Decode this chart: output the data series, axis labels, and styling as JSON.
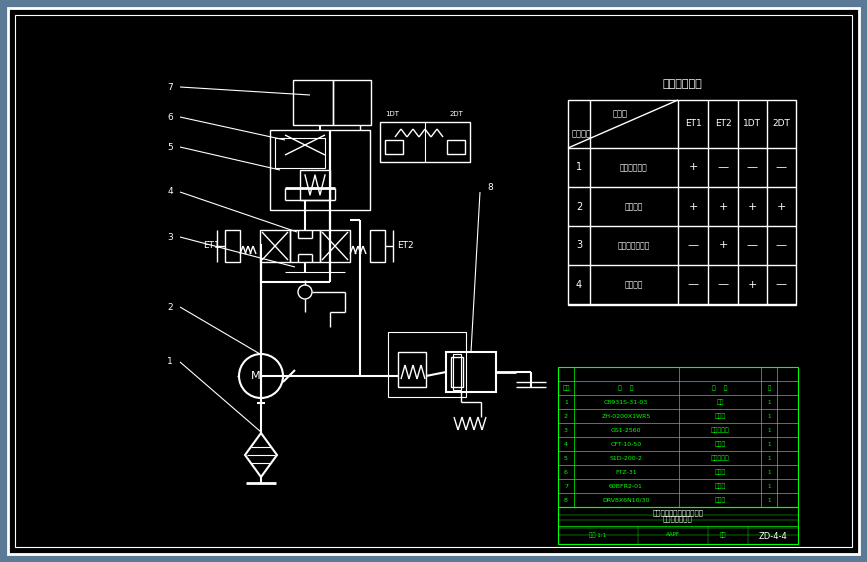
{
  "bg_color": "#000000",
  "line_color": "#ffffff",
  "green_color": "#00ff00",
  "title": "电磁阀动作表",
  "table_col1_top": "作序号",
  "table_col1_bot": "动作顺序",
  "table_headers": [
    "ET1",
    "ET2",
    "1DT",
    "2DT"
  ],
  "table_rows": [
    [
      "1",
      "举升控制销决",
      "+",
      "—",
      "—",
      "—"
    ],
    [
      "2",
      "卸载升起",
      "+",
      "+",
      "+",
      "+"
    ],
    [
      "3",
      "单向达到高限位",
      "—",
      "+",
      "—",
      "—"
    ],
    [
      "4",
      "高位停止",
      "—",
      "—",
      "+",
      "—"
    ]
  ],
  "bom_items": [
    [
      "8",
      "DRV8X6N10/30",
      "油罐管",
      "1"
    ],
    [
      "7",
      "60BFR2-01",
      "滤压罐",
      "1"
    ],
    [
      "6",
      "FTZ-31",
      "网履管",
      "1"
    ],
    [
      "5",
      "S1D-200-2",
      "三位控制阀",
      "1"
    ],
    [
      "4",
      "CFT-10-50",
      "单向阀",
      "1"
    ],
    [
      "3",
      "GS1-2560",
      "涡轮流量计",
      "1"
    ],
    [
      "2",
      "ZH-0200X1WR5",
      "液压罸",
      "1"
    ],
    [
      "1",
      "C8931S-31-03",
      "油罐",
      "1"
    ]
  ],
  "drawing_number": "ZD-4-4",
  "fig_width": 8.67,
  "fig_height": 5.62
}
